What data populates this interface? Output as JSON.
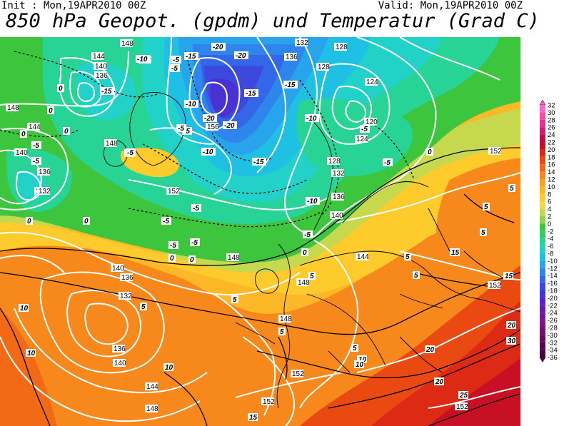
{
  "header": {
    "init": "Init : Mon,19APR2010 00Z",
    "valid": "Valid: Mon,19APR2010 00Z",
    "title": "850 hPa Geopot. (gpdm) und Temperatur (Grad C)"
  },
  "legend": {
    "labels": [
      "32",
      "30",
      "28",
      "26",
      "24",
      "22",
      "20",
      "18",
      "16",
      "14",
      "12",
      "10",
      "8",
      "6",
      "4",
      "2",
      "0",
      "-2",
      "-4",
      "-6",
      "-8",
      "-10",
      "-12",
      "-14",
      "-16",
      "-18",
      "-20",
      "-22",
      "-24",
      "-26",
      "-28",
      "-30",
      "-32",
      "-34",
      "-36"
    ],
    "colors": [
      "#ff66cc",
      "#f94bb0",
      "#e93394",
      "#d01a75",
      "#b80d4f",
      "#c81024",
      "#dc2a14",
      "#ea4a12",
      "#f26a16",
      "#f7881c",
      "#fba223",
      "#fdb827",
      "#fecb2c",
      "#f3d84a",
      "#c6d84e",
      "#8fd347",
      "#3dc53d",
      "#2fcf62",
      "#27d395",
      "#22d1c7",
      "#1fc0e3",
      "#27a4ec",
      "#2e86ed",
      "#3466e8",
      "#3d48df",
      "#4a31d4",
      "#5a23c4",
      "#6b1ab1",
      "#7a159d",
      "#83118a",
      "#800a70",
      "#6e0760",
      "#5b0550",
      "#4a0340"
    ]
  },
  "map_labels": {
    "geopotential": [
      "148",
      "144",
      "140",
      "136",
      "132",
      "148",
      "144",
      "140",
      "136",
      "132",
      "152",
      "148",
      "136",
      "156",
      "132",
      "128",
      "124",
      "120",
      "124",
      "128",
      "132",
      "136",
      "140",
      "144",
      "148",
      "152",
      "140",
      "136",
      "132",
      "136",
      "140",
      "144",
      "148",
      "152",
      "148",
      "152",
      "148",
      "152",
      "128",
      "152"
    ],
    "temperature": [
      "-10",
      "-15",
      "-15",
      "-15",
      "-20",
      "-20",
      "-20",
      "-20",
      "-15",
      "-10",
      "-5",
      "-10",
      "-15",
      "-5",
      "-5",
      "-10",
      "-5",
      "0",
      "-5",
      "-10",
      "0",
      "0",
      "-5",
      "-5",
      "-5",
      "-5",
      "0",
      "0",
      "5",
      "5",
      "10",
      "10",
      "10",
      "5",
      "5",
      "5",
      "10",
      "15",
      "15",
      "20",
      "20",
      "20",
      "25",
      "30",
      "0",
      "5",
      "5",
      "10",
      "15",
      "0",
      "5",
      "5",
      "0",
      "5",
      "-5",
      "-5",
      "0",
      "0",
      "-5",
      "-5",
      "-10",
      "-5",
      "-5"
    ]
  }
}
